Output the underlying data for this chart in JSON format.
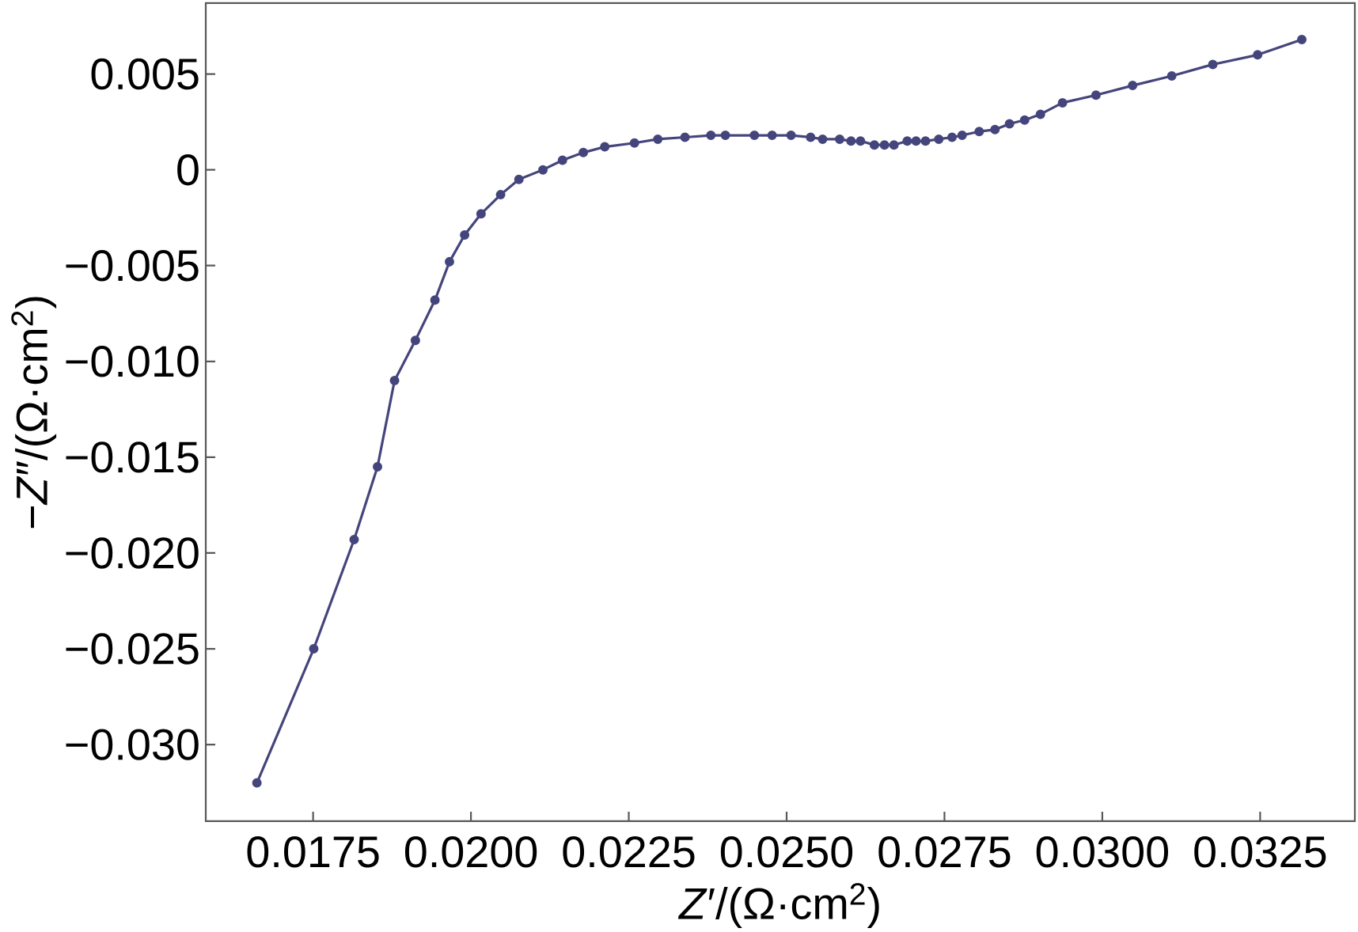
{
  "chart_data": {
    "type": "line",
    "xlabel": "*Z*′/(Ω·cm$^{2}$)",
    "ylabel": "−*Z*″/(Ω·cm$^{2}$)",
    "x": [
      0.01661,
      0.01751,
      0.01815,
      0.01852,
      0.01879,
      0.01912,
      0.01943,
      0.01966,
      0.0199,
      0.02016,
      0.02047,
      0.02076,
      0.02114,
      0.02145,
      0.02178,
      0.02212,
      0.02259,
      0.02296,
      0.02339,
      0.0238,
      0.02403,
      0.02449,
      0.02477,
      0.02507,
      0.02538,
      0.02557,
      0.02584,
      0.02602,
      0.02617,
      0.02639,
      0.02655,
      0.0267,
      0.02691,
      0.02705,
      0.0272,
      0.02741,
      0.02762,
      0.02778,
      0.02805,
      0.0283,
      0.02853,
      0.02877,
      0.02902,
      0.02937,
      0.0299,
      0.03048,
      0.0311,
      0.03175,
      0.03246,
      0.03316
    ],
    "values": [
      -0.032,
      -0.025,
      -0.0193,
      -0.0155,
      -0.011,
      -0.0089,
      -0.0068,
      -0.0048,
      -0.0034,
      -0.0023,
      -0.0013,
      -0.0005,
      0.0,
      0.0005,
      0.0009,
      0.0012,
      0.0014,
      0.0016,
      0.0017,
      0.0018,
      0.0018,
      0.0018,
      0.0018,
      0.0018,
      0.0017,
      0.0016,
      0.0016,
      0.0015,
      0.0015,
      0.0013,
      0.0013,
      0.0013,
      0.0015,
      0.0015,
      0.0015,
      0.0016,
      0.0017,
      0.0018,
      0.002,
      0.0021,
      0.0024,
      0.0026,
      0.0029,
      0.0035,
      0.0039,
      0.0044,
      0.0049,
      0.0055,
      0.006,
      0.0068
    ],
    "color": "#45457d",
    "marker": "circle",
    "line_style": "solid",
    "xlim": [
      0.0158,
      0.034
    ],
    "ylim": [
      -0.034,
      0.0087
    ],
    "xticks": [
      0.0175,
      {
        "value": 0.02,
        "label": "0.0200"
      },
      0.0225,
      {
        "value": 0.025,
        "label": "0.0250"
      },
      0.0275,
      {
        "value": 0.03,
        "label": "0.0300"
      },
      0.0325
    ],
    "yticks": [
      {
        "value": -0.03,
        "label": "−0.030"
      },
      {
        "value": -0.025,
        "label": "−0.025"
      },
      {
        "value": -0.02,
        "label": "−0.020"
      },
      {
        "value": -0.015,
        "label": "−0.015"
      },
      {
        "value": -0.01,
        "label": "−0.010"
      },
      {
        "value": -0.005,
        "label": "−0.005"
      },
      0,
      0.005
    ]
  }
}
